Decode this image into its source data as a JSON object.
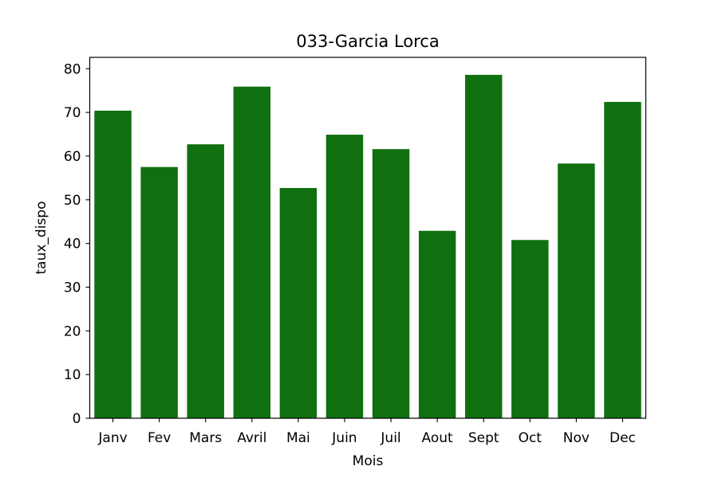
{
  "chart_data": {
    "type": "bar",
    "title": "033-Garcia Lorca",
    "xlabel": "Mois",
    "ylabel": "taux_dispo",
    "categories": [
      "Janv",
      "Fev",
      "Mars",
      "Avril",
      "Mai",
      "Juin",
      "Juil",
      "Aout",
      "Sept",
      "Oct",
      "Nov",
      "Dec"
    ],
    "values": [
      70.4,
      57.5,
      62.7,
      75.9,
      52.7,
      64.9,
      61.6,
      42.9,
      78.6,
      40.8,
      58.3,
      72.4
    ],
    "ylim": [
      0,
      82.6
    ],
    "yticks": [
      0,
      10,
      20,
      30,
      40,
      50,
      60,
      70,
      80
    ],
    "bar_color": "#107010",
    "grid": false,
    "legend": "none"
  }
}
